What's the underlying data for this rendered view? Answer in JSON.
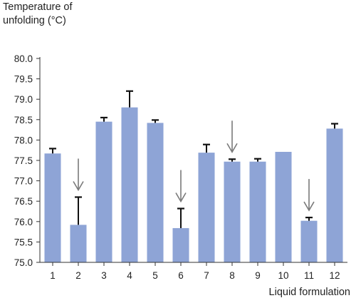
{
  "chart_data": {
    "type": "bar",
    "ylabel_line1": "Temperature of",
    "ylabel_line2": "unfolding (°C)",
    "xlabel": "Liquid formulation",
    "ylim": [
      75.0,
      80.0
    ],
    "yticks": [
      "75.0",
      "75.5",
      "76.0",
      "76.5",
      "77.0",
      "77.5",
      "78.0",
      "78.5",
      "79.0",
      "79.5",
      "80.0"
    ],
    "categories": [
      "1",
      "2",
      "3",
      "4",
      "5",
      "6",
      "7",
      "8",
      "9",
      "10",
      "11",
      "12"
    ],
    "values": [
      77.67,
      75.92,
      78.45,
      78.8,
      78.42,
      75.84,
      77.69,
      77.47,
      77.47,
      77.71,
      76.02,
      78.28
    ],
    "errors": [
      0.12,
      0.68,
      0.1,
      0.4,
      0.07,
      0.48,
      0.2,
      0.06,
      0.07,
      0,
      0.08,
      0.12
    ],
    "arrows": [
      "2",
      "6",
      "8",
      "11"
    ],
    "bar_color": "#8ea4d6",
    "error_color": "#111111",
    "arrow_color": "#7a7a7a",
    "grid": false
  }
}
